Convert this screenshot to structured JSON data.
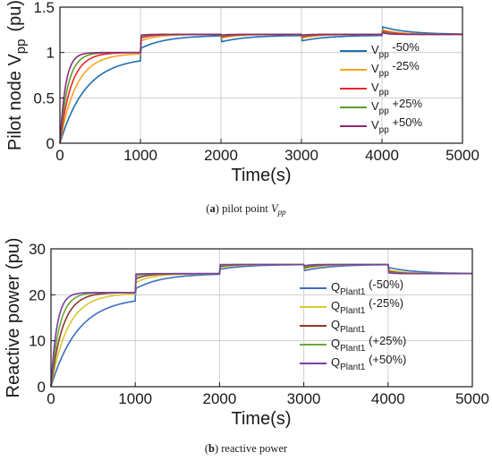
{
  "chart_data": [
    {
      "type": "line",
      "caption": {
        "letter": "a",
        "text": "pilot point",
        "var_main": "V",
        "var_sub": "pp"
      },
      "ylabel_main": "Pilot node V",
      "ylabel_sub": "pp",
      "ylabel_unit": "(pu)",
      "xlabel": "Time(s)",
      "xlim": [
        0,
        5000
      ],
      "ylim": [
        0,
        1.5
      ],
      "xticks": [
        "0",
        "1000",
        "2000",
        "3000",
        "4000",
        "5000"
      ],
      "yticks": [
        "0",
        "0.5",
        "1",
        "1.5"
      ],
      "grid": true,
      "legend_position": "right",
      "series": [
        {
          "legend_main": "V",
          "legend_sub": "pp",
          "legend_suffix": " -50%",
          "color": "#1f6fb0",
          "tau": 320,
          "x": [
            0,
            100,
            200,
            300,
            500,
            700,
            1000,
            1100,
            1300,
            1500,
            2000,
            2100,
            2300,
            2600,
            3000,
            3100,
            3300,
            3600,
            4000,
            4100,
            4300,
            4600,
            5000
          ],
          "y": [
            0,
            0.27,
            0.47,
            0.61,
            0.78,
            0.88,
            0.95,
            1.04,
            1.12,
            1.16,
            1.19,
            1.12,
            1.16,
            1.18,
            1.19,
            1.13,
            1.17,
            1.19,
            1.19,
            1.28,
            1.24,
            1.21,
            1.2
          ]
        },
        {
          "legend_main": "V",
          "legend_sub": "pp",
          "legend_suffix": " -25%",
          "color": "#f5a623",
          "tau": 200,
          "x": [
            0,
            100,
            200,
            300,
            500,
            700,
            1000,
            1100,
            1300,
            1500,
            2000,
            2100,
            2300,
            2600,
            3000,
            3100,
            3300,
            3600,
            4000,
            4100,
            4300,
            4600,
            5000
          ],
          "y": [
            0,
            0.39,
            0.63,
            0.78,
            0.92,
            0.97,
            0.99,
            1.12,
            1.17,
            1.19,
            1.2,
            1.16,
            1.19,
            1.2,
            1.2,
            1.16,
            1.19,
            1.2,
            1.2,
            1.25,
            1.22,
            1.2,
            1.2
          ]
        },
        {
          "legend_main": "V",
          "legend_sub": "pp",
          "legend_suffix": "",
          "color": "#e8262a",
          "tau": 140,
          "x": [
            0,
            100,
            200,
            300,
            500,
            700,
            1000,
            1100,
            1300,
            1500,
            2000,
            2100,
            2300,
            2600,
            3000,
            3100,
            3300,
            3600,
            4000,
            4100,
            4300,
            4600,
            5000
          ],
          "y": [
            0,
            0.51,
            0.76,
            0.88,
            0.97,
            0.99,
            1.0,
            1.15,
            1.19,
            1.2,
            1.2,
            1.17,
            1.19,
            1.2,
            1.2,
            1.17,
            1.2,
            1.2,
            1.2,
            1.24,
            1.21,
            1.2,
            1.2
          ]
        },
        {
          "legend_main": "V",
          "legend_sub": "pp",
          "legend_suffix": " +25%",
          "color": "#5aa02c",
          "tau": 100,
          "x": [
            0,
            100,
            200,
            300,
            500,
            700,
            1000,
            1100,
            1300,
            1500,
            2000,
            2100,
            2300,
            2600,
            3000,
            3100,
            3300,
            3600,
            4000,
            4100,
            4300,
            4600,
            5000
          ],
          "y": [
            0,
            0.63,
            0.86,
            0.95,
            0.99,
            1.0,
            1.0,
            1.17,
            1.2,
            1.2,
            1.2,
            1.18,
            1.2,
            1.2,
            1.2,
            1.18,
            1.2,
            1.2,
            1.2,
            1.23,
            1.21,
            1.2,
            1.2
          ]
        },
        {
          "legend_main": "V",
          "legend_sub": "pp",
          "legend_suffix": " +50%",
          "color": "#8e2a78",
          "tau": 70,
          "x": [
            0,
            100,
            200,
            300,
            500,
            700,
            1000,
            1100,
            1300,
            1500,
            2000,
            2100,
            2300,
            2600,
            3000,
            3100,
            3300,
            3600,
            4000,
            4100,
            4300,
            4600,
            5000
          ],
          "y": [
            0,
            0.76,
            0.94,
            0.99,
            1.0,
            1.0,
            1.0,
            1.18,
            1.2,
            1.2,
            1.2,
            1.19,
            1.2,
            1.2,
            1.2,
            1.19,
            1.2,
            1.2,
            1.2,
            1.22,
            1.2,
            1.2,
            1.2
          ]
        }
      ]
    },
    {
      "type": "line",
      "caption": {
        "letter": "b",
        "text": "reactive power"
      },
      "ylabel": "Reactive power (pu)",
      "xlabel": "Time(s)",
      "xlim": [
        0,
        5000
      ],
      "ylim": [
        0,
        30
      ],
      "xticks": [
        "0",
        "1000",
        "2000",
        "3000",
        "4000",
        "5000"
      ],
      "yticks": [
        "0",
        "10",
        "20",
        "30"
      ],
      "grid": true,
      "legend_position": "right",
      "series": [
        {
          "legend_main": "Q",
          "legend_sub": "Plant1",
          "legend_suffix": " (-50%)",
          "color": "#3a6fbf",
          "tau": 320,
          "x": [
            0,
            100,
            200,
            300,
            500,
            700,
            1000,
            1100,
            1300,
            1500,
            2000,
            2100,
            2300,
            2600,
            3000,
            3100,
            3300,
            3600,
            4000,
            4100,
            4300,
            4600,
            5000
          ],
          "y": [
            0,
            5.5,
            9.6,
            12.5,
            16.0,
            18.0,
            19.5,
            21.2,
            22.8,
            23.7,
            24.6,
            25.5,
            26.1,
            26.5,
            26.6,
            25.3,
            26.2,
            26.5,
            26.6,
            26.0,
            25.3,
            24.9,
            24.6
          ]
        },
        {
          "legend_main": "Q",
          "legend_sub": "Plant1",
          "legend_suffix": " (-25%)",
          "color": "#d9c92e",
          "tau": 200,
          "x": [
            0,
            100,
            200,
            300,
            500,
            700,
            1000,
            1100,
            1300,
            1500,
            2000,
            2100,
            2300,
            2600,
            3000,
            3100,
            3300,
            3600,
            4000,
            4100,
            4300,
            4600,
            5000
          ],
          "y": [
            0,
            8.1,
            13.0,
            15.9,
            18.9,
            19.9,
            20.3,
            22.5,
            23.9,
            24.4,
            24.6,
            25.9,
            26.4,
            26.6,
            26.6,
            25.7,
            26.4,
            26.6,
            26.6,
            25.5,
            24.9,
            24.7,
            24.6
          ]
        },
        {
          "legend_main": "Q",
          "legend_sub": "Plant1",
          "legend_suffix": "",
          "color": "#8b3a26",
          "tau": 140,
          "x": [
            0,
            100,
            200,
            300,
            500,
            700,
            1000,
            1100,
            1300,
            1500,
            2000,
            2100,
            2300,
            2600,
            3000,
            3100,
            3300,
            3600,
            4000,
            4100,
            4300,
            4600,
            5000
          ],
          "y": [
            0,
            10.5,
            15.6,
            18.1,
            20.0,
            20.4,
            20.5,
            23.3,
            24.3,
            24.5,
            24.6,
            26.1,
            26.5,
            26.6,
            26.6,
            25.9,
            26.5,
            26.6,
            26.6,
            25.2,
            24.8,
            24.6,
            24.6
          ]
        },
        {
          "legend_main": "Q",
          "legend_sub": "Plant1",
          "legend_suffix": " (+25%)",
          "color": "#6aa83a",
          "tau": 100,
          "x": [
            0,
            100,
            200,
            300,
            500,
            700,
            1000,
            1100,
            1300,
            1500,
            2000,
            2100,
            2300,
            2600,
            3000,
            3100,
            3300,
            3600,
            4000,
            4100,
            4300,
            4600,
            5000
          ],
          "y": [
            0,
            13.0,
            17.8,
            19.5,
            20.4,
            20.5,
            20.5,
            23.9,
            24.5,
            24.6,
            24.6,
            26.3,
            26.6,
            26.6,
            26.6,
            26.1,
            26.6,
            26.6,
            26.6,
            25.0,
            24.7,
            24.6,
            24.6
          ]
        },
        {
          "legend_main": "Q",
          "legend_sub": "Plant1",
          "legend_suffix": " (+50%)",
          "color": "#7a3fa0",
          "tau": 70,
          "x": [
            0,
            100,
            200,
            300,
            500,
            700,
            1000,
            1100,
            1300,
            1500,
            2000,
            2100,
            2300,
            2600,
            3000,
            3100,
            3300,
            3600,
            4000,
            4100,
            4300,
            4600,
            5000
          ],
          "y": [
            0,
            15.6,
            19.4,
            20.3,
            20.5,
            20.5,
            20.5,
            24.3,
            24.6,
            24.6,
            24.6,
            26.5,
            26.6,
            26.6,
            26.6,
            26.3,
            26.6,
            26.6,
            26.6,
            24.9,
            24.6,
            24.6,
            24.6
          ]
        }
      ]
    }
  ]
}
